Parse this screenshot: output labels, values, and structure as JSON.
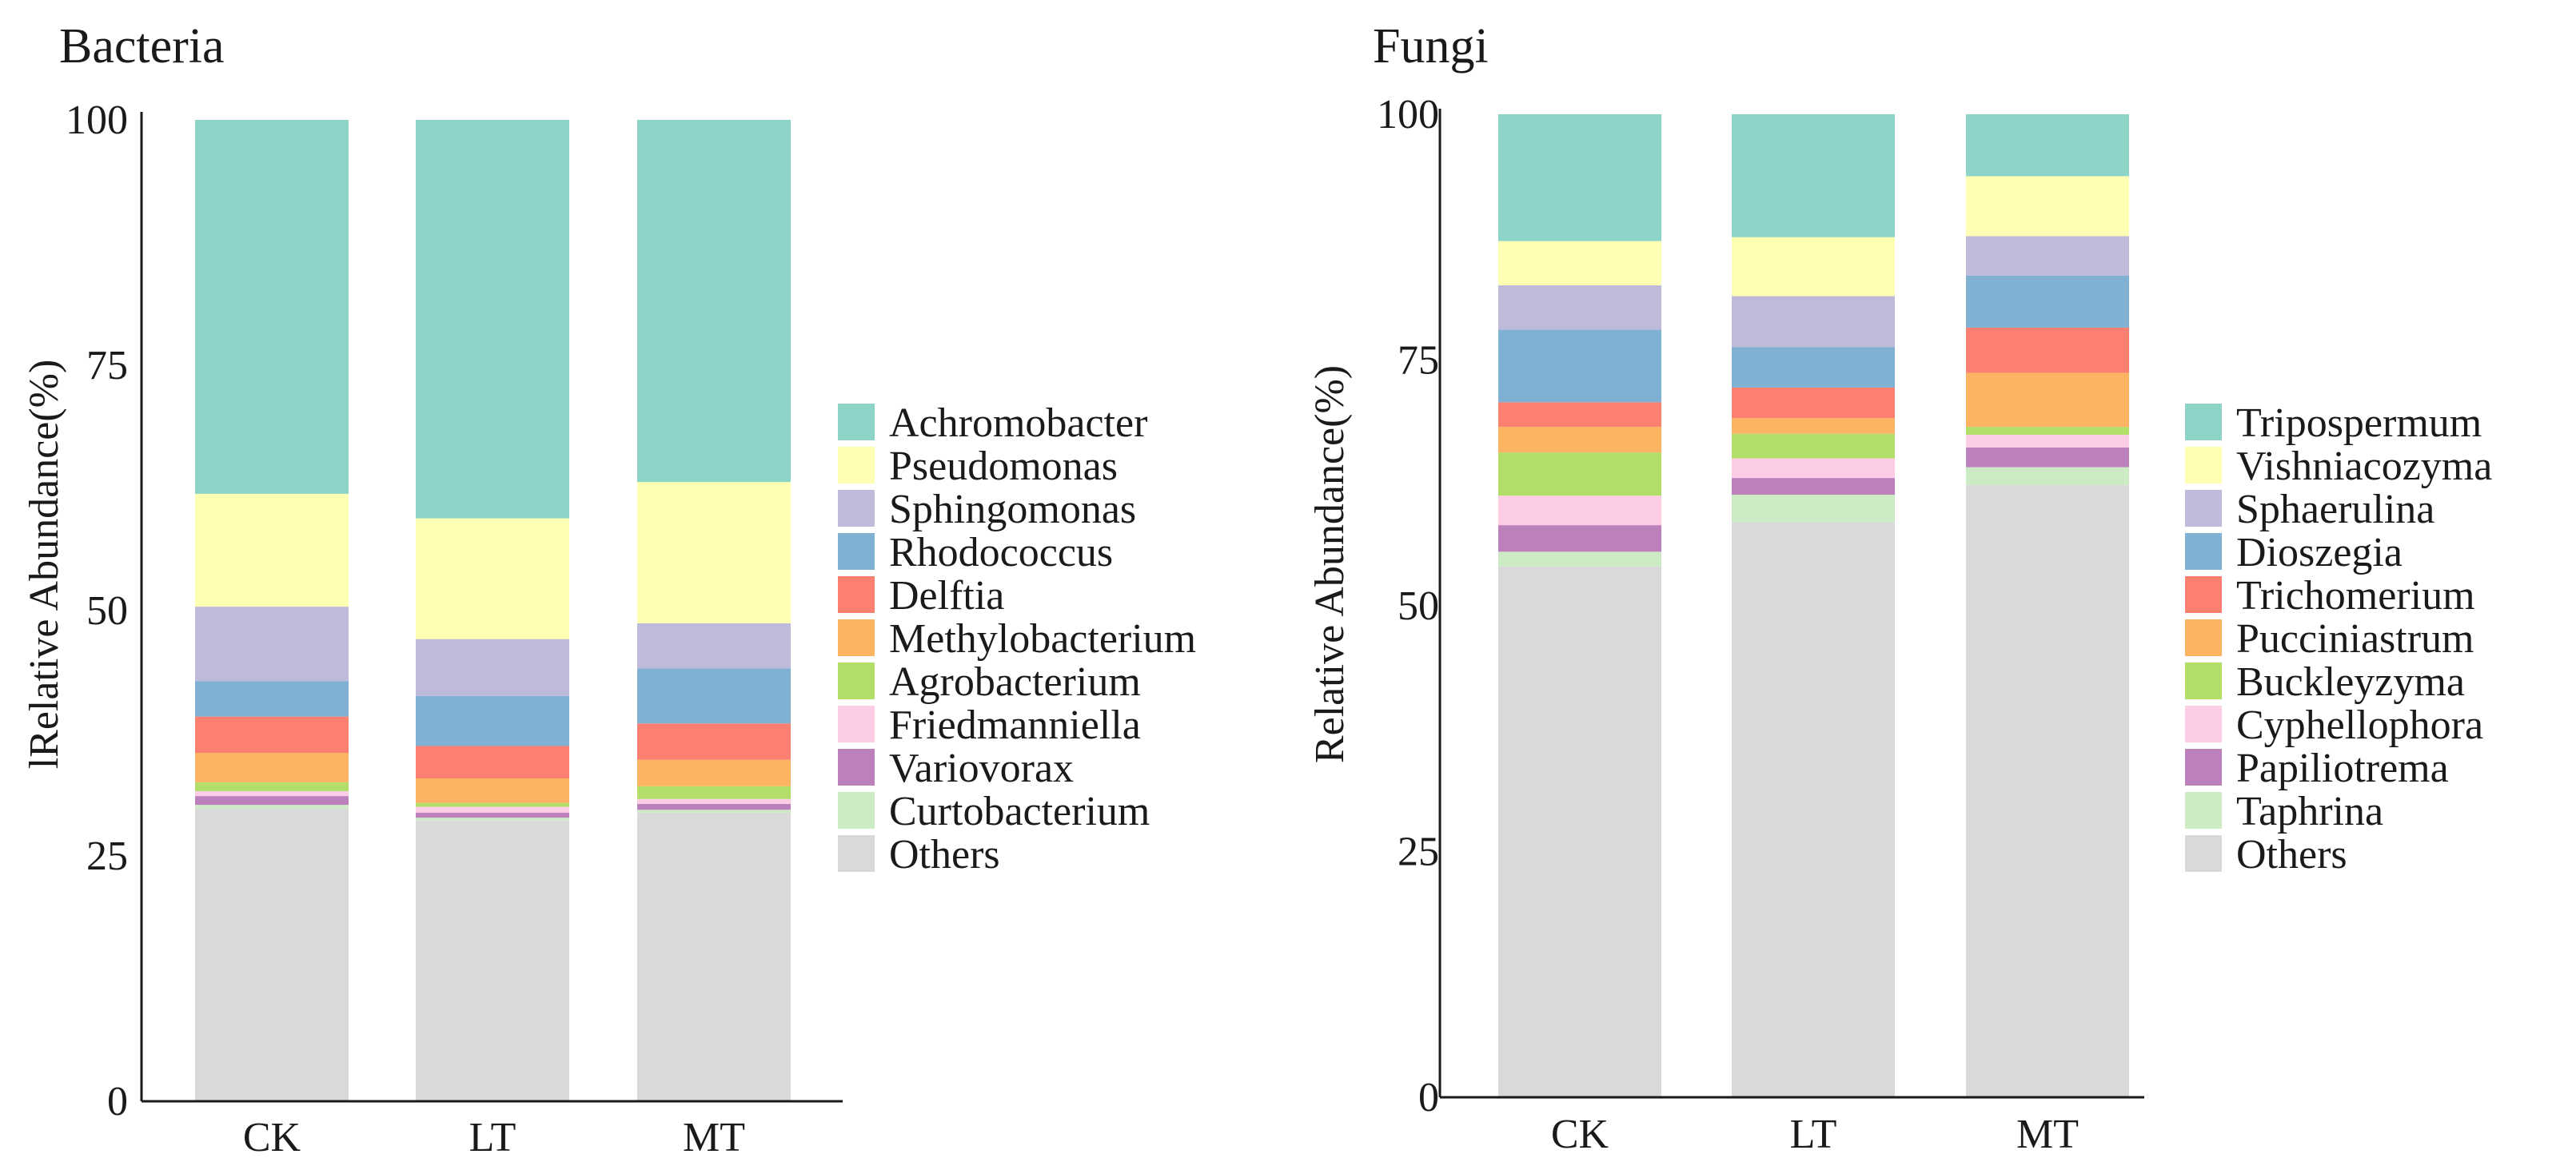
{
  "chart_data": [
    {
      "type": "bar",
      "stacked": true,
      "title": "Bacteria",
      "ylabel": "lRelative Abundance(%)",
      "xlabel": "",
      "ylim": [
        0,
        100
      ],
      "yticks": [
        "0",
        "25",
        "50",
        "75",
        "100"
      ],
      "categories": [
        "CK",
        "LT",
        "MT"
      ],
      "legend_title": "",
      "series": [
        {
          "name": "Others",
          "color": "#d9d9d9",
          "values": [
            29.8,
            28.6,
            29.4
          ]
        },
        {
          "name": "Curtobacterium",
          "color": "#ccebc5",
          "values": [
            0.4,
            0.3,
            0.3
          ]
        },
        {
          "name": "Variovorax",
          "color": "#bc80bd",
          "values": [
            0.9,
            0.5,
            0.6
          ]
        },
        {
          "name": "Friedmanniella",
          "color": "#fccde5",
          "values": [
            0.5,
            0.6,
            0.5
          ]
        },
        {
          "name": "Agrobacterium",
          "color": "#b3de69",
          "values": [
            0.9,
            0.4,
            1.3
          ]
        },
        {
          "name": "Methylobacterium",
          "color": "#fdb462",
          "values": [
            3.0,
            2.5,
            2.7
          ]
        },
        {
          "name": "Delftia",
          "color": "#fb8072",
          "values": [
            3.7,
            3.3,
            3.7
          ]
        },
        {
          "name": "Rhodococcus",
          "color": "#80b1d3",
          "values": [
            3.6,
            5.1,
            5.6
          ]
        },
        {
          "name": "Sphingomonas",
          "color": "#bebada",
          "values": [
            7.6,
            5.8,
            4.6
          ]
        },
        {
          "name": "Pseudomonas",
          "color": "#ffffb3",
          "values": [
            11.5,
            12.3,
            14.4
          ]
        },
        {
          "name": "Achromobacter",
          "color": "#8dd3c7",
          "values": [
            38.1,
            40.6,
            36.9
          ]
        }
      ]
    },
    {
      "type": "bar",
      "stacked": true,
      "title": "Fungi",
      "ylabel": "Relative Abundance(%)",
      "xlabel": "",
      "ylim": [
        0,
        100
      ],
      "yticks": [
        "0",
        "25",
        "50",
        "75",
        "100"
      ],
      "categories": [
        "CK",
        "LT",
        "MT"
      ],
      "series": [
        {
          "name": "Others",
          "color": "#d9d9d9",
          "values": [
            54.0,
            58.5,
            62.3
          ]
        },
        {
          "name": "Taphrina",
          "color": "#ccebc5",
          "values": [
            1.5,
            2.8,
            1.8
          ]
        },
        {
          "name": "Papiliotrema",
          "color": "#bc80bd",
          "values": [
            2.7,
            1.7,
            2.0
          ]
        },
        {
          "name": "Cyphellophora",
          "color": "#fccde5",
          "values": [
            3.0,
            2.0,
            1.3
          ]
        },
        {
          "name": "Buckleyzyma",
          "color": "#b3de69",
          "values": [
            4.4,
            2.5,
            0.8
          ]
        },
        {
          "name": "Pucciniastrum",
          "color": "#fdb462",
          "values": [
            2.6,
            1.6,
            5.5
          ]
        },
        {
          "name": "Trichomerium",
          "color": "#fb8072",
          "values": [
            2.5,
            3.1,
            4.6
          ]
        },
        {
          "name": "Dioszegia",
          "color": "#80b1d3",
          "values": [
            7.4,
            4.1,
            5.3
          ]
        },
        {
          "name": "Sphaerulina",
          "color": "#bebada",
          "values": [
            4.5,
            5.2,
            4.0
          ]
        },
        {
          "name": "Vishniacozyma",
          "color": "#ffffb3",
          "values": [
            4.5,
            6.0,
            6.1
          ]
        },
        {
          "name": "Tripospermum",
          "color": "#8dd3c7",
          "values": [
            12.9,
            12.5,
            6.3
          ]
        }
      ]
    }
  ]
}
